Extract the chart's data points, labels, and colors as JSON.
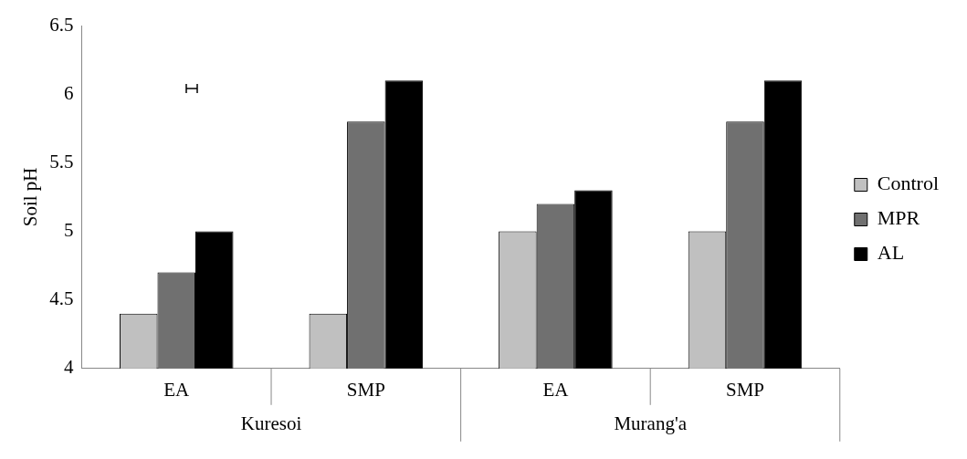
{
  "chart_data": {
    "type": "bar",
    "ylabel": "Soil pH",
    "categories": [
      "EA",
      "SMP",
      "EA",
      "SMP"
    ],
    "series": [
      {
        "name": "Control",
        "color": "#c0c0c0",
        "values": [
          4.4,
          4.4,
          5.0,
          5.0
        ]
      },
      {
        "name": "MPR",
        "color": "#707070",
        "values": [
          4.7,
          5.8,
          5.2,
          5.8
        ]
      },
      {
        "name": "AL",
        "color": "#000000",
        "values": [
          5.0,
          6.1,
          5.3,
          6.1
        ]
      }
    ],
    "annotations": [
      "Kuresoi",
      "Murang'a"
    ],
    "ylim": [
      4,
      6.5
    ],
    "yticks": [
      4,
      4.5,
      5,
      5.5,
      6,
      6.5
    ],
    "grid": false,
    "legend": "right"
  }
}
